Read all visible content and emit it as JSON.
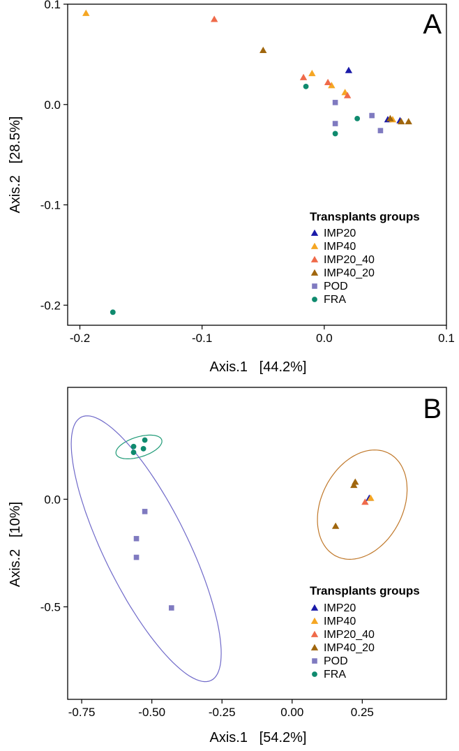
{
  "chart_data": [
    {
      "type": "scatter",
      "panel_label": "A",
      "xlabel": "Axis.1   [44.2%]",
      "ylabel": "Axis.2   [28.5%]",
      "xlim": [
        -0.21,
        0.1
      ],
      "ylim": [
        -0.22,
        0.1
      ],
      "x_ticks": [
        -0.2,
        -0.1,
        0.0,
        0.1
      ],
      "x_tick_labels": [
        "-0.2",
        "-0.1",
        "0.0",
        "0.1"
      ],
      "y_ticks": [
        -0.2,
        -0.1,
        0.0,
        0.1
      ],
      "y_tick_labels": [
        "-0.2",
        "-0.1",
        "0.0",
        "0.1"
      ],
      "grid": false,
      "legend": {
        "title": "Transplants groups",
        "position": "bottom-right"
      },
      "series": [
        {
          "name": "IMP20",
          "color": "#1a1aa8",
          "marker": "triangle",
          "points": [
            [
              0.02,
              0.034
            ],
            [
              0.052,
              -0.015
            ],
            [
              0.062,
              -0.016
            ]
          ]
        },
        {
          "name": "IMP40",
          "color": "#f5a623",
          "marker": "triangle",
          "points": [
            [
              -0.195,
              0.091
            ],
            [
              -0.01,
              0.031
            ],
            [
              0.006,
              0.019
            ],
            [
              0.017,
              0.012
            ],
            [
              0.056,
              -0.015
            ]
          ]
        },
        {
          "name": "IMP20_40",
          "color": "#ef6a4a",
          "marker": "triangle",
          "points": [
            [
              -0.09,
              0.085
            ],
            [
              -0.017,
              0.027
            ],
            [
              0.003,
              0.022
            ],
            [
              0.019,
              0.009
            ]
          ]
        },
        {
          "name": "IMP40_20",
          "color": "#a0660d",
          "marker": "triangle",
          "points": [
            [
              -0.05,
              0.054
            ],
            [
              0.054,
              -0.014
            ],
            [
              0.063,
              -0.017
            ],
            [
              0.069,
              -0.017
            ]
          ]
        },
        {
          "name": "POD",
          "color": "#7f7ac0",
          "marker": "square",
          "points": [
            [
              0.009,
              0.002
            ],
            [
              0.009,
              -0.019
            ],
            [
              0.039,
              -0.011
            ],
            [
              0.046,
              -0.026
            ]
          ]
        },
        {
          "name": "FRA",
          "color": "#0f8a6e",
          "marker": "circle",
          "points": [
            [
              -0.015,
              0.018
            ],
            [
              0.027,
              -0.014
            ],
            [
              0.009,
              -0.029
            ],
            [
              -0.173,
              -0.207
            ]
          ]
        }
      ]
    },
    {
      "type": "scatter",
      "panel_label": "B",
      "xlabel": "Axis.1   [54.2%]",
      "ylabel": "Axis.2   [10%]",
      "xlim": [
        -0.8,
        0.55
      ],
      "ylim": [
        -0.93,
        0.52
      ],
      "x_ticks": [
        -0.75,
        -0.5,
        -0.25,
        0.0,
        0.25
      ],
      "x_tick_labels": [
        "-0.75",
        "-0.50",
        "-0.25",
        "0.00",
        "0.25"
      ],
      "y_ticks": [
        -0.5,
        0.0
      ],
      "y_tick_labels": [
        "-0.5",
        "0.0"
      ],
      "grid": false,
      "legend": {
        "title": "Transplants groups",
        "position": "bottom-right"
      },
      "series": [
        {
          "name": "IMP20",
          "color": "#1a1aa8",
          "marker": "triangle",
          "points": [
            [
              0.275,
              0.005
            ]
          ]
        },
        {
          "name": "IMP40",
          "color": "#f5a623",
          "marker": "triangle",
          "points": [
            [
              0.28,
              0.005
            ]
          ]
        },
        {
          "name": "IMP20_40",
          "color": "#ef6a4a",
          "marker": "triangle",
          "points": [
            [
              0.26,
              -0.013
            ]
          ]
        },
        {
          "name": "IMP40_20",
          "color": "#a0660d",
          "marker": "triangle",
          "points": [
            [
              0.225,
              0.08
            ],
            [
              0.22,
              0.065
            ],
            [
              0.155,
              -0.125
            ]
          ]
        },
        {
          "name": "POD",
          "color": "#7f7ac0",
          "marker": "square",
          "points": [
            [
              -0.525,
              -0.057
            ],
            [
              -0.555,
              -0.183
            ],
            [
              -0.555,
              -0.27
            ],
            [
              -0.43,
              -0.505
            ]
          ]
        },
        {
          "name": "FRA",
          "color": "#0f8a6e",
          "marker": "circle",
          "points": [
            [
              -0.525,
              0.275
            ],
            [
              -0.565,
              0.245
            ],
            [
              -0.53,
              0.235
            ],
            [
              -0.565,
              0.218
            ]
          ]
        }
      ],
      "ellipses": [
        {
          "group": "FRA",
          "color": "#1e9a76",
          "cx": -0.546,
          "cy": 0.243,
          "rx": 0.088,
          "ry": 0.045,
          "angle_deg": 25
        },
        {
          "group": "POD",
          "color": "#6f69c9",
          "cx": -0.52,
          "cy": -0.23,
          "rx": 0.655,
          "ry": 0.155,
          "angle_deg": -70
        },
        {
          "group": "IMP",
          "color": "#c0782a",
          "cx": 0.25,
          "cy": -0.025,
          "rx": 0.26,
          "ry": 0.15,
          "angle_deg": 75
        }
      ]
    }
  ]
}
